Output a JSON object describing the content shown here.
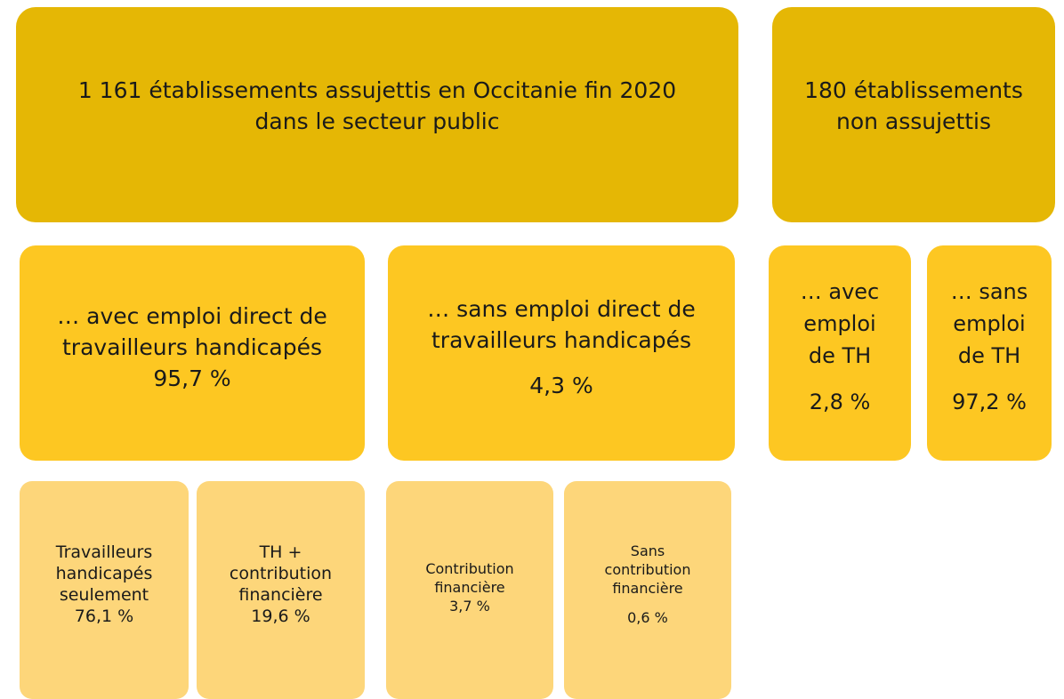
{
  "nodes": [
    {
      "lines": [
        "1 161 établissements assujettis en Occitanie fin 2020",
        "dans le secteur public"
      ]
    },
    {
      "lines": [
        "180 établissements",
        "non assujettis"
      ]
    },
    {
      "lines": [
        "… avec emploi direct de",
        "travailleurs handicapés"
      ],
      "value": "95,7 %"
    },
    {
      "lines": [
        "… sans emploi direct de",
        "travailleurs handicapés"
      ],
      "value": "4,3 %"
    },
    {
      "lines": [
        "… avec",
        "emploi",
        "de TH"
      ],
      "value": "2,8 %"
    },
    {
      "lines": [
        "… sans",
        "emploi",
        "de TH"
      ],
      "value": "97,2 %"
    },
    {
      "lines": [
        "Travailleurs",
        "handicapés",
        "seulement"
      ],
      "value": "76,1 %"
    },
    {
      "lines": [
        "TH +",
        "contribution",
        "financière"
      ],
      "value": "19,6 %"
    },
    {
      "lines": [
        "Contribution",
        "financière"
      ],
      "value": "3,7 %"
    },
    {
      "lines": [
        "Sans",
        "contribution",
        "financière"
      ],
      "value": "0,6 %"
    }
  ]
}
